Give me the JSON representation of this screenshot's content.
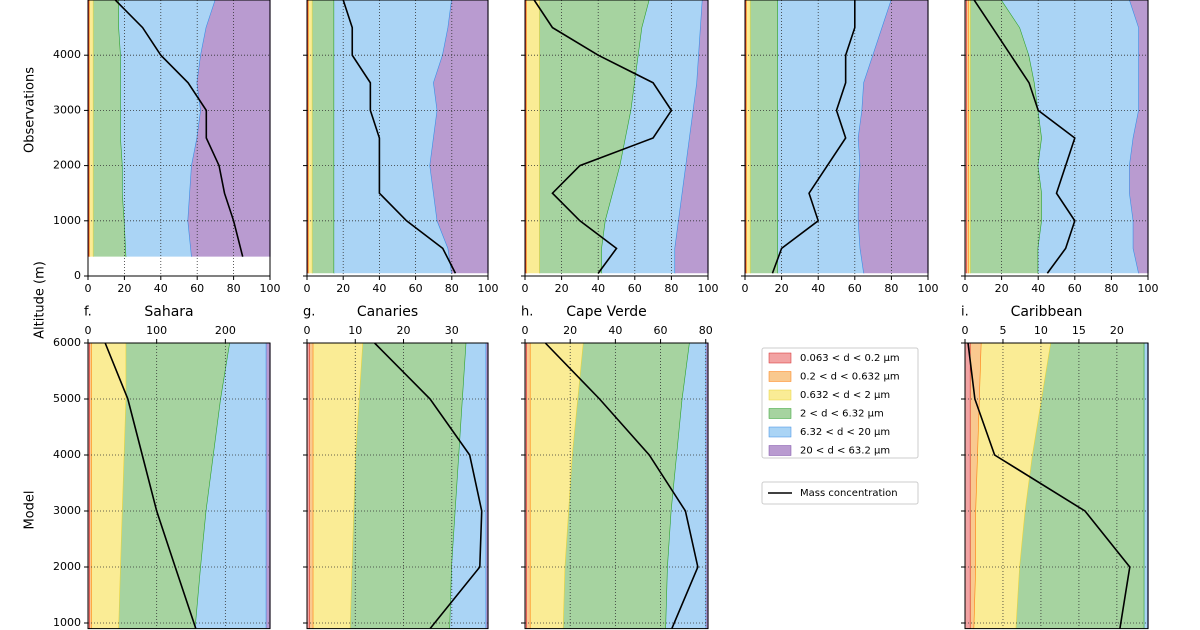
{
  "figure": {
    "ylabel": "Altitude (m)",
    "row_labels": [
      "Observations",
      "Model"
    ],
    "legend": [
      {
        "name": "0.063 < d < 0.2 μm",
        "color": "#f2a3a3",
        "edge": "#d62728"
      },
      {
        "name": "0.2 < d < 0.632 μm",
        "color": "#f9c98f",
        "edge": "#ff7f0e"
      },
      {
        "name": "0.632 < d < 2 μm",
        "color": "#faec95",
        "edge": "#e8d43a"
      },
      {
        "name": "2 < d < 6.32 μm",
        "color": "#a6d3a0",
        "edge": "#2ca02c"
      },
      {
        "name": "6.32 < d < 20 μm",
        "color": "#aad4f5",
        "edge": "#3a8ee6"
      },
      {
        "name": "20 < d < 63.2 μm",
        "color": "#b99bd0",
        "edge": "#7d4fa8"
      }
    ],
    "mass_legend": {
      "name": "Mass concentration",
      "color": "#000000"
    }
  },
  "chart_data": [
    {
      "type": "area",
      "altitudes": [
        350,
        1000,
        1500,
        2000,
        2500,
        3000,
        3500,
        4000,
        4500,
        5000
      ],
      "series": [
        {
          "values": [
            0.5,
            0.5,
            0.5,
            0.5,
            0.5,
            0.5,
            0.5,
            0.5,
            0.5,
            0.5
          ]
        },
        {
          "values": [
            0.5,
            0.5,
            0.5,
            0.5,
            0.5,
            0.5,
            0.5,
            0.5,
            0.5,
            0.5
          ]
        },
        {
          "values": [
            2,
            2,
            2,
            2,
            2,
            2,
            2,
            2,
            2,
            2
          ]
        },
        {
          "values": [
            18,
            17,
            16,
            16,
            15,
            15,
            15,
            15,
            14,
            14
          ]
        },
        {
          "values": [
            36,
            35,
            37,
            38,
            42,
            44,
            42,
            44,
            48,
            53
          ]
        },
        {
          "values": [
            43,
            45,
            44,
            43,
            40,
            38,
            40,
            38,
            35,
            30
          ]
        }
      ],
      "mass": {
        "values": [
          85,
          80,
          75,
          72,
          65,
          65,
          55,
          40,
          30,
          15
        ]
      },
      "xlim": [
        0,
        100
      ],
      "xticks": [
        0,
        20,
        40,
        60,
        80,
        100
      ],
      "ylim": [
        0,
        5000
      ],
      "yticks": [
        0,
        1000,
        2000,
        3000,
        4000
      ]
    },
    {
      "type": "area",
      "altitudes": [
        50,
        500,
        1000,
        1500,
        2000,
        2500,
        3000,
        3500,
        4000,
        4500,
        5000
      ],
      "series": [
        {
          "values": [
            0.5,
            0.5,
            0.5,
            0.5,
            0.5,
            0.5,
            0.5,
            0.5,
            0.5,
            0.5,
            0.5
          ]
        },
        {
          "values": [
            0.5,
            0.5,
            0.5,
            0.5,
            0.5,
            0.5,
            0.5,
            0.5,
            0.5,
            0.5,
            0.5
          ]
        },
        {
          "values": [
            2,
            2,
            2,
            2,
            2,
            2,
            2,
            2,
            2,
            2,
            2
          ]
        },
        {
          "values": [
            12,
            12,
            12,
            12,
            12,
            12,
            12,
            12,
            12,
            12,
            12
          ]
        },
        {
          "values": [
            65,
            63,
            57,
            55,
            53,
            55,
            57,
            55,
            60,
            63,
            65
          ]
        },
        {
          "values": [
            20,
            22,
            28,
            30,
            32,
            30,
            28,
            30,
            25,
            22,
            20
          ]
        }
      ],
      "mass": {
        "values": [
          82,
          75,
          55,
          40,
          40,
          40,
          35,
          35,
          25,
          25,
          20
        ]
      },
      "xlim": [
        0,
        100
      ],
      "xticks": [
        0,
        20,
        40,
        60,
        80,
        100
      ],
      "ylim": [
        0,
        5000
      ],
      "yticks": [
        0,
        1000,
        2000,
        3000,
        4000
      ]
    },
    {
      "type": "area",
      "altitudes": [
        50,
        500,
        1000,
        1500,
        2000,
        2500,
        3000,
        3500,
        4000,
        4500,
        5000
      ],
      "series": [
        {
          "values": [
            0.5,
            0.5,
            0.5,
            0.5,
            0.5,
            0.5,
            0.5,
            0.5,
            0.5,
            0.5,
            0.5
          ]
        },
        {
          "values": [
            0.5,
            0.5,
            0.5,
            0.5,
            0.5,
            0.5,
            0.5,
            0.5,
            0.5,
            0.5,
            0.5
          ]
        },
        {
          "values": [
            7,
            7,
            7,
            7,
            7,
            7,
            7,
            7,
            7,
            7,
            7
          ]
        },
        {
          "values": [
            34,
            34,
            36,
            40,
            44,
            47,
            50,
            52,
            54,
            56,
            60
          ]
        },
        {
          "values": [
            40,
            40,
            40,
            38,
            36,
            35,
            34,
            34,
            33,
            32,
            29
          ]
        },
        {
          "values": [
            18,
            18,
            16,
            14,
            12,
            10,
            8,
            6,
            5,
            4,
            3
          ]
        }
      ],
      "mass": {
        "values": [
          40,
          50,
          30,
          15,
          30,
          70,
          80,
          70,
          40,
          15,
          5
        ]
      },
      "xlim": [
        0,
        100
      ],
      "xticks": [
        0,
        20,
        40,
        60,
        80,
        100
      ],
      "ylim": [
        0,
        5000
      ],
      "yticks": [
        0,
        1000,
        2000,
        3000,
        4000
      ]
    },
    {
      "type": "area",
      "altitudes": [
        50,
        500,
        1000,
        1500,
        2000,
        2500,
        3000,
        3500,
        4000,
        4500,
        5000
      ],
      "series": [
        {
          "values": [
            0.5,
            0.5,
            0.5,
            0.5,
            0.5,
            0.5,
            0.5,
            0.5,
            0.5,
            0.5,
            0.5
          ]
        },
        {
          "values": [
            0.5,
            0.5,
            0.5,
            0.5,
            0.5,
            0.5,
            0.5,
            0.5,
            0.5,
            0.5,
            0.5
          ]
        },
        {
          "values": [
            2,
            2,
            2,
            2,
            2,
            2,
            2,
            2,
            2,
            2,
            2
          ]
        },
        {
          "values": [
            15,
            15,
            15,
            15,
            15,
            15,
            15,
            15,
            15,
            15,
            15
          ]
        },
        {
          "values": [
            47,
            45,
            44,
            44,
            45,
            44,
            46,
            47,
            52,
            57,
            62
          ]
        },
        {
          "values": [
            35,
            37,
            38,
            38,
            37,
            38,
            36,
            35,
            30,
            25,
            20
          ]
        }
      ],
      "mass": {
        "values": [
          15,
          20,
          40,
          35,
          45,
          55,
          50,
          55,
          55,
          60,
          60
        ]
      },
      "xlim": [
        0,
        100
      ],
      "xticks": [
        0,
        20,
        40,
        60,
        80,
        100
      ],
      "ylim": [
        0,
        5000
      ],
      "yticks": [
        0,
        1000,
        2000,
        3000,
        4000
      ]
    },
    {
      "type": "area",
      "altitudes": [
        50,
        500,
        1000,
        1500,
        2000,
        2500,
        3000,
        3500,
        4000,
        4500,
        5000
      ],
      "series": [
        {
          "values": [
            1,
            1,
            1,
            1,
            1,
            1,
            1,
            1,
            1,
            1,
            1
          ]
        },
        {
          "values": [
            1,
            1,
            1,
            1,
            1,
            1,
            1,
            1,
            1,
            1,
            1
          ]
        },
        {
          "values": [
            1,
            1,
            1,
            1,
            1,
            1,
            1,
            1,
            1,
            1,
            1
          ]
        },
        {
          "values": [
            37,
            37,
            39,
            39,
            37,
            39,
            37,
            35,
            32,
            27,
            17
          ]
        },
        {
          "values": [
            55,
            52,
            50,
            48,
            50,
            50,
            55,
            57,
            60,
            65,
            70
          ]
        },
        {
          "values": [
            5,
            8,
            8,
            10,
            10,
            8,
            5,
            5,
            5,
            5,
            10
          ]
        }
      ],
      "mass": {
        "values": [
          45,
          55,
          60,
          50,
          55,
          60,
          40,
          35,
          25,
          15,
          5
        ]
      },
      "xlim": [
        0,
        100
      ],
      "xticks": [
        0,
        20,
        40,
        60,
        80,
        100
      ],
      "ylim": [
        0,
        5000
      ],
      "yticks": [
        0,
        1000,
        2000,
        3000,
        4000
      ]
    },
    {
      "type": "area",
      "letter": "f.",
      "title": "Sahara",
      "altitudes": [
        900,
        2000,
        3000,
        4000,
        5000,
        6000
      ],
      "series": [
        {
          "values": [
            1,
            1,
            1,
            1,
            1,
            1
          ]
        },
        {
          "values": [
            1,
            1,
            1,
            1,
            1,
            1
          ]
        },
        {
          "values": [
            15,
            16,
            17,
            18,
            19,
            19
          ]
        },
        {
          "values": [
            42,
            44,
            46,
            49,
            52,
            57
          ]
        },
        {
          "values": [
            39,
            36,
            33,
            29,
            25,
            20
          ]
        },
        {
          "values": [
            2,
            2,
            2,
            2,
            2,
            2
          ]
        }
      ],
      "mass": {
        "values": [
          157,
          127,
          100,
          79,
          58,
          25
        ]
      },
      "xlim": [
        0,
        100
      ],
      "x2lim": [
        0,
        265
      ],
      "x2ticks": [
        0,
        100,
        200
      ],
      "ylim": [
        900,
        6000
      ],
      "yticks": [
        1000,
        2000,
        3000,
        4000,
        5000,
        6000
      ]
    },
    {
      "type": "area",
      "letter": "g.",
      "title": "Canaries",
      "altitudes": [
        900,
        2000,
        3000,
        4000,
        5000,
        6000
      ],
      "series": [
        {
          "values": [
            1.5,
            1.5,
            1.5,
            1.5,
            1.5,
            1.5
          ]
        },
        {
          "values": [
            2,
            2,
            2,
            2,
            2,
            2
          ]
        },
        {
          "values": [
            20.5,
            21.5,
            22.5,
            23.5,
            25.5,
            27.5
          ]
        },
        {
          "values": [
            55,
            55,
            56,
            57,
            57,
            57
          ]
        },
        {
          "values": [
            20,
            19,
            17,
            15,
            13,
            11
          ]
        },
        {
          "values": [
            1,
            1,
            1,
            1,
            1,
            1
          ]
        }
      ],
      "mass": {
        "values": [
          25.5,
          35.8,
          36.2,
          33.7,
          25.5,
          14
        ]
      },
      "xlim": [
        0,
        100
      ],
      "x2lim": [
        0,
        37.5
      ],
      "x2ticks": [
        0,
        10,
        20,
        30
      ],
      "ylim": [
        900,
        6000
      ],
      "yticks": [
        1000,
        2000,
        3000,
        4000,
        5000,
        6000
      ]
    },
    {
      "type": "area",
      "letter": "h.",
      "title": "Cape Verde",
      "altitudes": [
        900,
        2000,
        3000,
        4000,
        5000,
        6000
      ],
      "series": [
        {
          "values": [
            1,
            1,
            1,
            1,
            1,
            1
          ]
        },
        {
          "values": [
            2,
            2,
            2,
            2,
            2,
            2
          ]
        },
        {
          "values": [
            18,
            19,
            21,
            23,
            26,
            29
          ]
        },
        {
          "values": [
            56,
            56,
            56,
            57,
            57,
            58
          ]
        },
        {
          "values": [
            22,
            21,
            19,
            16,
            13,
            9
          ]
        },
        {
          "values": [
            1,
            1,
            1,
            1,
            1,
            1
          ]
        }
      ],
      "mass": {
        "values": [
          65,
          76.5,
          71,
          55,
          33,
          9
        ]
      },
      "xlim": [
        0,
        100
      ],
      "x2lim": [
        0,
        81
      ],
      "x2ticks": [
        0,
        20,
        40,
        60,
        80
      ],
      "ylim": [
        900,
        6000
      ],
      "yticks": [
        1000,
        2000,
        3000,
        4000,
        5000,
        6000
      ]
    },
    {
      "type": "area",
      "letter": "i.",
      "title": "Caribbean",
      "altitudes": [
        900,
        2000,
        3000,
        4000,
        5000,
        6000
      ],
      "series": [
        {
          "values": [
            3,
            3,
            3,
            3,
            3,
            3
          ]
        },
        {
          "values": [
            2,
            3,
            3,
            4,
            5,
            6
          ]
        },
        {
          "values": [
            23,
            24,
            27,
            30,
            34,
            38
          ]
        },
        {
          "values": [
            70,
            68,
            65,
            61,
            56,
            51
          ]
        },
        {
          "values": [
            2,
            2,
            2,
            2,
            2,
            2
          ]
        },
        {
          "values": [
            0,
            0,
            0,
            0,
            0,
            0
          ]
        }
      ],
      "mass": {
        "values": [
          20.4,
          21.7,
          15.8,
          3.9,
          1.3,
          0.4
        ]
      },
      "xlim": [
        0,
        100
      ],
      "x2lim": [
        0,
        24.1
      ],
      "x2ticks": [
        0,
        5,
        10,
        15,
        20
      ],
      "ylim": [
        900,
        6000
      ],
      "yticks": [
        1000,
        2000,
        3000,
        4000,
        5000,
        6000
      ]
    }
  ]
}
